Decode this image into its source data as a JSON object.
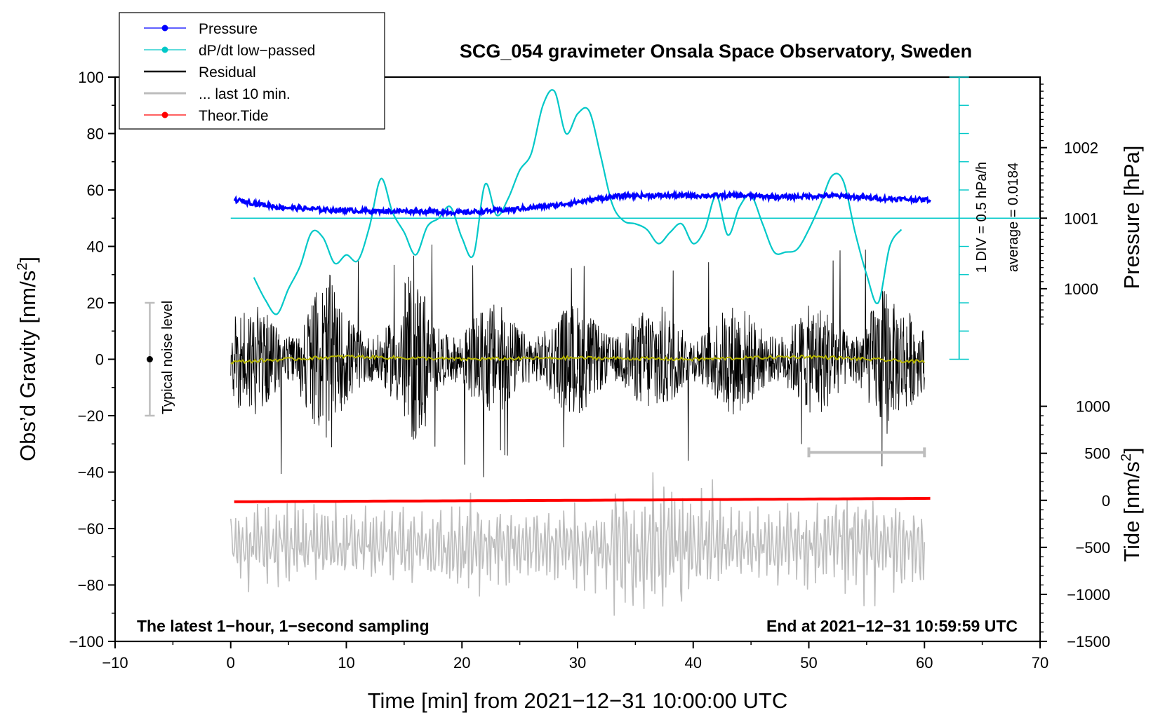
{
  "chart_data": {
    "type": "line",
    "title": "SCG_054 gravimeter Onsala Space Observatory, Sweden",
    "xlabel": "Time [min] from 2021−12−31 10:00:00 UTC",
    "ylabel_left": "Obs’d Gravity [nm/s",
    "ylabel_left_sup": "2",
    "ylabel_left_end": "]",
    "ylabel_right_top": "Pressure [hPa]",
    "ylabel_right_bottom": "Tide [nm/s",
    "ylabel_right_bottom_sup": "2",
    "ylabel_right_bottom_end": "]",
    "xlim": [
      -10,
      70
    ],
    "ylim": [
      -100,
      100
    ],
    "x_ticks": [
      -10,
      0,
      10,
      20,
      30,
      40,
      50,
      60,
      70
    ],
    "x_tick_labels": [
      "−10",
      "0",
      "10",
      "20",
      "30",
      "40",
      "50",
      "60",
      "70"
    ],
    "y_ticks": [
      -100,
      -80,
      -60,
      -40,
      -20,
      0,
      20,
      40,
      60,
      80,
      100
    ],
    "y_tick_labels": [
      "−100",
      "−80",
      "−60",
      "−40",
      "−20",
      "0",
      "20",
      "40",
      "60",
      "80",
      "100"
    ],
    "pressure_axis": {
      "ticks": [
        1000,
        1001,
        1002
      ],
      "tick_labels": [
        "1000",
        "1001",
        "1002"
      ],
      "gravity_at_1000": 25,
      "gravity_per_hpa": 25
    },
    "tide_axis": {
      "ticks": [
        1000,
        500,
        0,
        -500,
        -1000,
        -1500
      ],
      "tick_labels": [
        "1000",
        "500",
        "0",
        "−500",
        "−1000",
        "−1500"
      ],
      "gravity_at_0": -50,
      "gravity_per_unit": 0.03333
    },
    "legend": [
      {
        "label": "Pressure",
        "color": "#0000ff",
        "marker": true
      },
      {
        "label": "dP/dt low−passed",
        "color": "#00c8c8",
        "marker": true
      },
      {
        "label": "Residual",
        "color": "#000000",
        "marker": false
      },
      {
        "label": "... last 10 min.",
        "color": "#bdbdbd",
        "marker": false
      },
      {
        "label": "Theor.Tide",
        "color": "#ff0000",
        "marker": true
      }
    ],
    "series": [
      {
        "name": "Pressure",
        "color": "#0000ff",
        "x": [
          0.3,
          4,
          8,
          12,
          16,
          20,
          24,
          28,
          32,
          34,
          40,
          44,
          48,
          52,
          56,
          60.5
        ],
        "y": [
          56.5,
          54,
          53,
          52.5,
          52.5,
          52,
          53,
          54.5,
          57,
          58,
          58,
          58,
          57.5,
          58,
          57,
          56.5
        ]
      },
      {
        "name": "dP/dt low-passed",
        "color": "#00c8c8",
        "x": [
          2,
          3,
          4,
          5,
          6,
          7,
          8,
          9,
          10,
          11,
          12,
          13,
          14,
          15,
          16,
          17,
          18,
          19,
          20,
          21,
          22,
          23,
          24,
          25,
          26,
          27,
          28,
          29,
          30,
          31,
          32,
          33,
          34,
          35,
          36,
          37,
          38,
          39,
          40,
          41,
          42,
          43,
          44,
          45,
          46,
          47,
          48,
          49,
          50,
          51,
          52,
          53,
          54,
          55,
          56,
          57,
          58
        ],
        "y": [
          29,
          21,
          16,
          25,
          33,
          45,
          43,
          34,
          37,
          35,
          47,
          64,
          52,
          45,
          37,
          47,
          50,
          54,
          43,
          37,
          62,
          51,
          57,
          67,
          73,
          90,
          95,
          80,
          87,
          88,
          72,
          55,
          49,
          48,
          46,
          41,
          45,
          48,
          41,
          46,
          58,
          44,
          54,
          58,
          48,
          38,
          38,
          39,
          46,
          55,
          65,
          63,
          45,
          30,
          20,
          40,
          46
        ]
      },
      {
        "name": "Residual",
        "color": "#000000",
        "x_range": [
          0,
          60
        ],
        "y_range": [
          -42,
          46
        ]
      },
      {
        "name": "Residual smoothed",
        "color": "#b5b500",
        "x": [
          0,
          10,
          20,
          30,
          40,
          50,
          60
        ],
        "y": [
          -1,
          1,
          0,
          0.5,
          0,
          1,
          -1
        ]
      },
      {
        "name": "... last 10 min.",
        "color": "#bdbdbd",
        "x_range": [
          0,
          60
        ],
        "y_range": [
          -100,
          -33
        ]
      },
      {
        "name": "Theor.Tide",
        "color": "#ff0000",
        "x": [
          0.3,
          30,
          60.5
        ],
        "y": [
          -50.5,
          -50,
          -49.3
        ]
      }
    ],
    "dpdt_scale": {
      "zero_gravity": 50,
      "label_div": "1 DIV = 0.5 hPa/h",
      "label_avg": "average = 0.0184"
    },
    "noise_bar": {
      "label": "Typical noise level",
      "x": -7,
      "y_center": 0,
      "y_half": 20
    },
    "last10_bar": {
      "x_start": 50,
      "x_end": 60,
      "y": -33
    },
    "annotation_left": "The latest 1−hour, 1−second sampling",
    "annotation_right": "End at 2021−12−31 10:59:59 UTC"
  }
}
